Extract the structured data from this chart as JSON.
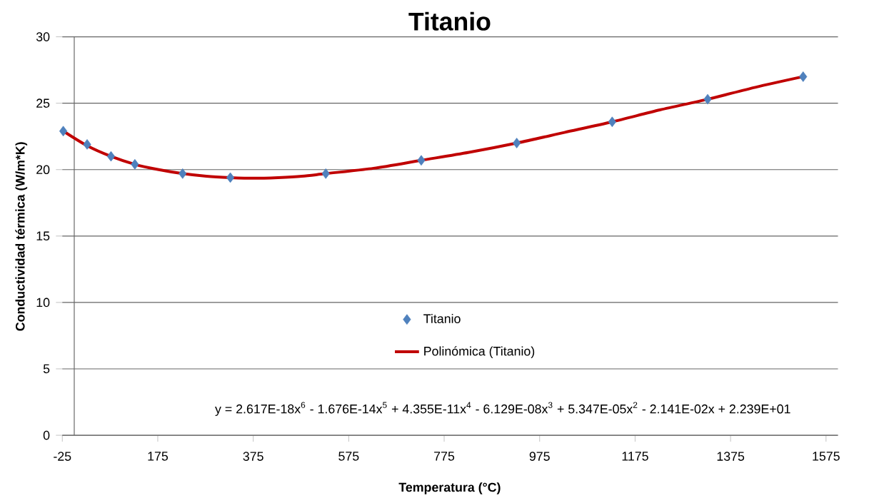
{
  "chart_data": {
    "type": "scatter",
    "title": "Titanio",
    "xlabel": "Temperatura (°C)",
    "ylabel": "Conductividad térmica (W/m*K)",
    "annotations": [
      "y = 2.617E-18x$^{6}$ - 1.676E-14x$^{5}$ + 4.355E-11x$^{4}$ - 6.129E-08x$^{3}$ + 5.347E-05x$^{2}$ - 2.141E-02x + 2.239E+01"
    ],
    "series": [
      {
        "name": "Titanio",
        "marker": "diamond",
        "color": "#4f81bd",
        "x": [
          -23,
          27,
          77,
          127,
          227,
          327,
          527,
          727,
          927,
          1127,
          1327,
          1527
        ],
        "values": [
          22.9,
          21.9,
          21.0,
          20.4,
          19.7,
          19.4,
          19.7,
          20.7,
          22.0,
          23.6,
          25.3,
          27.0
        ]
      },
      {
        "name": "Polinómica (Titanio)",
        "type": "line",
        "marker": "none",
        "line_style": "solid",
        "color": "#c00000",
        "x": [
          -23,
          27,
          77,
          127,
          177,
          227,
          277,
          327,
          377,
          427,
          477,
          527,
          627,
          727,
          827,
          927,
          1027,
          1127,
          1227,
          1327,
          1427,
          1527
        ],
        "values": [
          22.9,
          21.8,
          21.0,
          20.4,
          20.0,
          19.7,
          19.5,
          19.4,
          19.35,
          19.4,
          19.5,
          19.7,
          20.1,
          20.7,
          21.3,
          22.0,
          22.8,
          23.6,
          24.5,
          25.3,
          26.2,
          27.0
        ]
      }
    ],
    "xlim": [
      -25,
      1600
    ],
    "xticks": [
      -25,
      175,
      375,
      575,
      775,
      975,
      1175,
      1375,
      1575
    ],
    "ylim": [
      0,
      30
    ],
    "yticks": [
      0,
      5,
      10,
      15,
      20,
      25,
      30
    ],
    "grid": "y",
    "legend": "bottom"
  }
}
